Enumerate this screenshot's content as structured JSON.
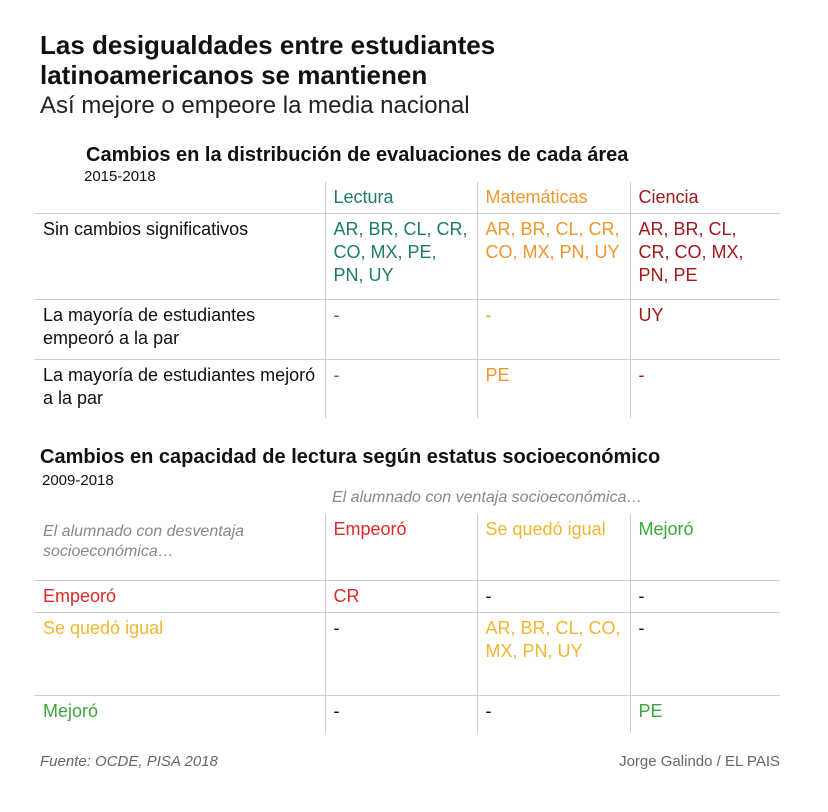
{
  "title": "Las desigualdades entre estudiantes latinoamericanos se mantienen",
  "subtitle": "Así mejore o empeore la media nacional",
  "table1": {
    "heading": "Cambios en la distribución de evaluaciones de cada área",
    "years": "2015-2018",
    "columns": [
      "Lectura",
      "Matemáticas",
      "Ciencia"
    ],
    "rows": [
      {
        "label": "Sin cambios significativos",
        "cells": [
          "AR, BR, CL, CR, CO, MX, PE, PN, UY",
          "AR, BR, CL, CR, CO, MX, PN, UY",
          "AR, BR, CL, CR, CO, MX, PN, PE"
        ]
      },
      {
        "label": "La mayoría de estudiantes empeoró a la par",
        "cells": [
          "-",
          "-",
          "UY"
        ]
      },
      {
        "label": "La mayoría de estudiantes mejoró a la par",
        "cells": [
          "-",
          "PE",
          "-"
        ]
      }
    ],
    "colors": [
      "#1f7a6e",
      "#f0962f",
      "#a3181c"
    ]
  },
  "table2": {
    "heading": "Cambios en capacidad de lectura según estatus socioeconómico",
    "years": "2009-2018",
    "col_note": "El alumnado con ventaja socioeconómica…",
    "row_note": "El alumnado con desventaja socioeconómica…",
    "columns": [
      "Empeoró",
      "Se quedó igual",
      "Mejoró"
    ],
    "rows": [
      {
        "label": "Empeoró",
        "cells": [
          "CR",
          "-",
          "-"
        ]
      },
      {
        "label": "Se quedó igual",
        "cells": [
          "-",
          "AR, BR, CL, CO, MX, PN, UY",
          "-"
        ]
      },
      {
        "label": "Mejoró",
        "cells": [
          "-",
          "-",
          "PE"
        ]
      }
    ],
    "colors": [
      "#dc2a2a",
      "#f2b531",
      "#3aa83a"
    ]
  },
  "source": "Fuente: OCDE, PISA 2018",
  "credit": "Jorge Galindo / EL PAIS"
}
